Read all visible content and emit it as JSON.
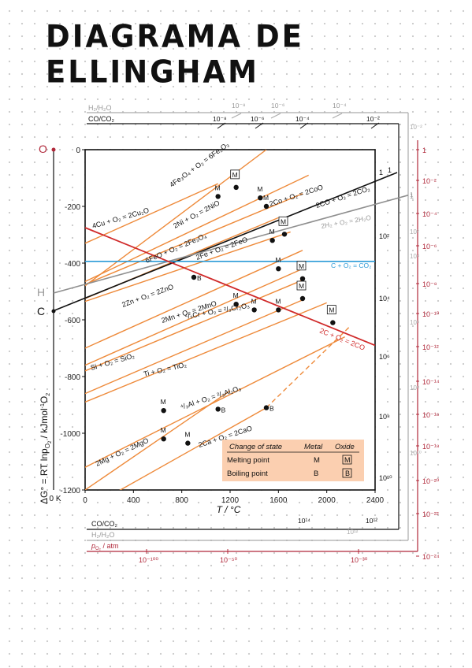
{
  "page": {
    "title": "DIAGRAMA DE ELLINGHAM"
  },
  "chart_data": {
    "type": "line",
    "xlabel": "T / °C",
    "ylabel": "ΔG° = RT lnp",
    "ylabel_sub": "O",
    "ylabel_sub2": "2",
    "ylabel_unit": " / kJmol",
    "ylabel_unit_sup": "-1",
    "ylabel_unit_end": "O",
    "ylabel_unit_sub": "2",
    "xlim": [
      0,
      2400
    ],
    "ylim": [
      -1200,
      0
    ],
    "x_ticks": [
      0,
      400,
      800,
      1200,
      1600,
      2000,
      2400
    ],
    "y_ticks": [
      0,
      -200,
      -400,
      -600,
      -800,
      -1000,
      -1200
    ],
    "y_tick_labels": [
      "0",
      "-200",
      "-400",
      "-600",
      "-800",
      "-1000",
      "-1200"
    ],
    "zero_kelvin_label": "0 K",
    "left_points": {
      "O": "O",
      "H": "H",
      "C": "C"
    },
    "reactions": [
      {
        "label": "4Cu + O₂ = 2Cu₂O",
        "x": [
          0,
          1100
        ],
        "y": [
          -330,
          -120
        ]
      },
      {
        "label": "4Fe₃O₄ + O₂ = 6Fe₂O₃",
        "x": [
          0,
          1500
        ],
        "y": [
          -480,
          0
        ]
      },
      {
        "label": "2Ni + O₂ = 2NiO",
        "x": [
          0,
          1850
        ],
        "y": [
          -465,
          -90
        ]
      },
      {
        "label": "2Co + O₂ = 2CoO",
        "x": [
          0,
          1800
        ],
        "y": [
          -475,
          -155
        ]
      },
      {
        "label": "6FeO + O₂ = 2Fe₃O₄",
        "x": [
          0,
          1600
        ],
        "y": [
          -525,
          -240
        ]
      },
      {
        "label": "2Fe + O₂ = 2FeO",
        "x": [
          0,
          1700
        ],
        "y": [
          -535,
          -290
        ]
      },
      {
        "label": "2Zn + O₂ = 2ZnO",
        "x": [
          0,
          1800
        ],
        "y": [
          -700,
          -355
        ]
      },
      {
        "label": "⁴/₃Cr + O₂ = ²/₃Cr₂O₃",
        "x": [
          0,
          1800
        ],
        "y": [
          -760,
          -420
        ]
      },
      {
        "label": "2Mn + O₂ = 2MnO",
        "x": [
          0,
          1800
        ],
        "y": [
          -780,
          -460
        ]
      },
      {
        "label": "Si + O₂ = SiO₂",
        "x": [
          0,
          1800
        ],
        "y": [
          -860,
          -530
        ]
      },
      {
        "label": "Ti + O₂ = TiO₂",
        "x": [
          0,
          2000
        ],
        "y": [
          -890,
          -540
        ]
      },
      {
        "label": "⁴/₃Al + O₂ = ²/₃Al₂O₃",
        "x": [
          0,
          2150
        ],
        "y": [
          -1120,
          -660
        ]
      },
      {
        "label": "2Ca + O₂ = 2CaO",
        "x": [
          0,
          1500
        ],
        "y": [
          -1270,
          -910
        ]
      },
      {
        "label": "2Mg + O₂ = 2MgO",
        "x": [
          0,
          1200
        ],
        "y": [
          -1200,
          -850
        ]
      }
    ],
    "special_reactions": [
      {
        "label": "2CO + O₂ = 2CO₂",
        "x": [
          0,
          2400
        ],
        "y": [
          -568,
          -150
        ]
      },
      {
        "label": "2H₂ + O₂ = 2H₂O",
        "x": [
          0,
          2400
        ],
        "y": [
          -495,
          -305
        ]
      },
      {
        "label": "C + O₂ = CO₂",
        "x": [
          0,
          2400
        ],
        "y": [
          -394,
          -394
        ]
      },
      {
        "label": "2C + O₂ = 2CO",
        "x": [
          0,
          2400
        ],
        "y": [
          -275,
          -690
        ]
      }
    ],
    "ca_dashed": {
      "x": [
        1500,
        2200
      ],
      "y": [
        -910,
        -620
      ]
    },
    "melting_points": [
      {
        "x": 1100,
        "y": -165
      },
      {
        "x": 1450,
        "y": -170
      },
      {
        "x": 1500,
        "y": -200
      },
      {
        "x": 1550,
        "y": -320
      },
      {
        "x": 1600,
        "y": -420
      },
      {
        "x": 1250,
        "y": -545
      },
      {
        "x": 1400,
        "y": -565
      },
      {
        "x": 1600,
        "y": -565
      },
      {
        "x": 650,
        "y": -920
      },
      {
        "x": 650,
        "y": -1020
      },
      {
        "x": 850,
        "y": -1035
      }
    ],
    "boiling_points": [
      {
        "x": 900,
        "y": -450
      },
      {
        "x": 1100,
        "y": -915
      },
      {
        "x": 1500,
        "y": -910
      }
    ],
    "oxide_melting_points": [
      {
        "x": 1250,
        "y": -133
      },
      {
        "x": 1650,
        "y": -298
      },
      {
        "x": 1800,
        "y": -455
      },
      {
        "x": 1800,
        "y": -525
      },
      {
        "x": 2050,
        "y": -610
      }
    ],
    "point_marker_label_M": "M",
    "point_marker_label_B": "B",
    "legend": {
      "placement": "bottom-right",
      "header": [
        "Change of state",
        "Metal",
        "Oxide"
      ],
      "rows": [
        {
          "label": "Melting point",
          "metal": "M",
          "oxide": "M"
        },
        {
          "label": "Boiling point",
          "metal": "B",
          "oxide": "B"
        }
      ]
    },
    "scales": {
      "h2_h2o_label": "H₂/H₂O",
      "co_co2_label": "CO/CO₂",
      "po2_label": "p",
      "po2_sub": "O₂",
      "po2_unit": " / atm",
      "top_h2": [
        "10⁻⁸",
        "10⁻⁶",
        "10⁻⁴"
      ],
      "top_co": [
        "10⁻⁸",
        "10⁻⁶",
        "10⁻⁴",
        "10⁻²"
      ],
      "h_right": [
        "10⁻²",
        "1",
        "10²",
        "10⁴",
        "10⁶",
        "10⁸",
        "10¹⁰"
      ],
      "c_right": [
        "1",
        "10²",
        "10⁴",
        "10⁶",
        "10⁸",
        "10¹⁰"
      ],
      "o_right": [
        "1",
        "10⁻²",
        "10⁻⁴",
        "10⁻⁶",
        "10⁻⁸",
        "10⁻¹⁰",
        "10⁻¹²",
        "10⁻¹⁴",
        "10⁻¹⁶",
        "10⁻¹⁸",
        "10⁻²⁰",
        "10⁻²²",
        "10⁻²⁴"
      ],
      "bottom_co": [
        "10¹⁴",
        "10¹²"
      ],
      "bottom_h2": [
        "10¹²"
      ],
      "bottom_p": [
        "10⁻¹⁰⁰",
        "10⁻⁵⁰",
        "10⁻³⁰"
      ]
    },
    "line_end_labels": {
      "co_end": "1",
      "h2_end": "1"
    },
    "colors": {
      "metal_lines": "#ee8a3a",
      "co2": "#111111",
      "h2o": "#8f8f8f",
      "c_co2": "#2a9ad8",
      "c_co": "#d02a2a",
      "scale_red": "#b0283a",
      "legend_bg": "#fbcfb0"
    }
  }
}
